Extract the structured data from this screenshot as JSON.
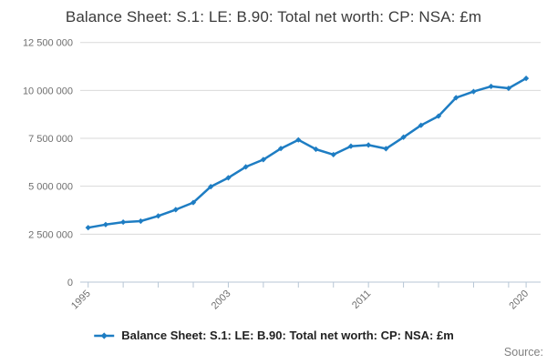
{
  "title": "Balance Sheet: S.1: LE: B.90: Total net worth: CP: NSA: £m",
  "legend": {
    "label": "Balance Sheet: S.1: LE: B.90: Total net worth: CP: NSA: £m"
  },
  "source_label": "Source:",
  "colors": {
    "line": "#1e7dc3",
    "grid": "#d9d9d9",
    "axis": "#b7c6d5",
    "tick_label": "#6f6f6f",
    "title": "#3b3b3b",
    "legend_text": "#222222",
    "source": "#808080",
    "background": "#ffffff"
  },
  "chart_data": {
    "type": "line",
    "title": "Balance Sheet: S.1: LE: B.90: Total net worth: CP: NSA: £m",
    "xlabel": "",
    "ylabel": "",
    "x": [
      1995,
      1996,
      1997,
      1998,
      1999,
      2000,
      2001,
      2002,
      2003,
      2004,
      2005,
      2006,
      2007,
      2008,
      2009,
      2010,
      2011,
      2012,
      2013,
      2014,
      2015,
      2016,
      2017,
      2018,
      2019,
      2020
    ],
    "series": [
      {
        "name": "Balance Sheet: S.1: LE: B.90: Total net worth: CP: NSA: £m",
        "values": [
          2840000,
          3000000,
          3130000,
          3180000,
          3450000,
          3780000,
          4150000,
          4980000,
          5440000,
          6010000,
          6390000,
          6970000,
          7420000,
          6930000,
          6650000,
          7090000,
          7150000,
          6960000,
          7560000,
          8180000,
          8660000,
          9620000,
          9940000,
          10210000,
          10110000,
          10630000
        ]
      }
    ],
    "ylim": [
      0,
      12500000
    ],
    "y_ticks": [
      0,
      2500000,
      5000000,
      7500000,
      10000000,
      12500000
    ],
    "y_tick_labels": [
      "0",
      "2 500 000",
      "5 000 000",
      "7 500 000",
      "10 000 000",
      "12 500 000"
    ],
    "x_tick_years": [
      1995,
      1997,
      1999,
      2001,
      2003,
      2005,
      2007,
      2009,
      2011,
      2013,
      2015,
      2017,
      2019,
      2020
    ],
    "x_label_years": [
      1995,
      2003,
      2011,
      2020
    ],
    "grid": true,
    "legend_position": "bottom",
    "marker": "diamond"
  }
}
